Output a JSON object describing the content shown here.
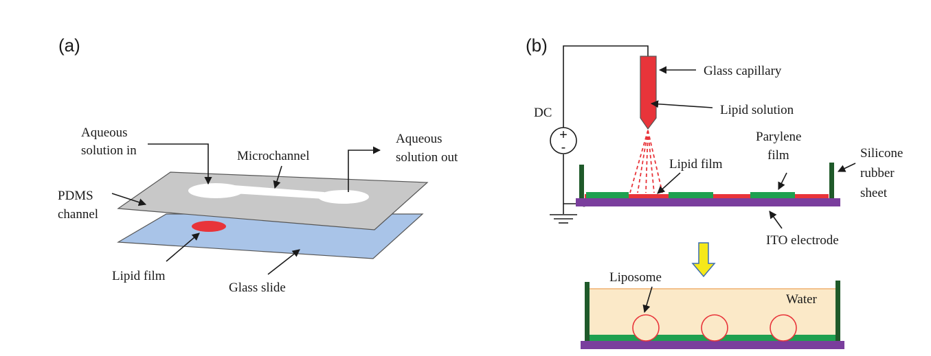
{
  "panel_a": {
    "tag": "(a)",
    "labels": {
      "aqueous_in_1": "Aqueous",
      "aqueous_in_2": "solution in",
      "microchannel": "Microchannel",
      "aqueous_out_1": "Aqueous",
      "aqueous_out_2": "solution out",
      "pdms_1": "PDMS",
      "pdms_2": "channel",
      "lipid_film": "Lipid film",
      "glass_slide": "Glass slide"
    }
  },
  "panel_b": {
    "tag": "(b)",
    "labels": {
      "dc": "DC",
      "plus": "+",
      "minus": "-",
      "glass_capillary": "Glass capillary",
      "lipid_solution": "Lipid solution",
      "parylene_1": "Parylene",
      "parylene_2": "film",
      "lipid_film": "Lipid film",
      "silicone_1": "Silicone",
      "silicone_2": "rubber",
      "silicone_3": "sheet",
      "ito": "ITO electrode",
      "liposome": "Liposome",
      "water": "Water"
    }
  },
  "colors": {
    "pdms": "#c8c8c8",
    "glass": "#a9c4e8",
    "lipid": "#e8343a",
    "parylene": "#1ea050",
    "ito": "#7a3e9d",
    "silicone": "#1f5a2a",
    "water": "#fbe9c8",
    "arrow": "#f5e81a"
  }
}
